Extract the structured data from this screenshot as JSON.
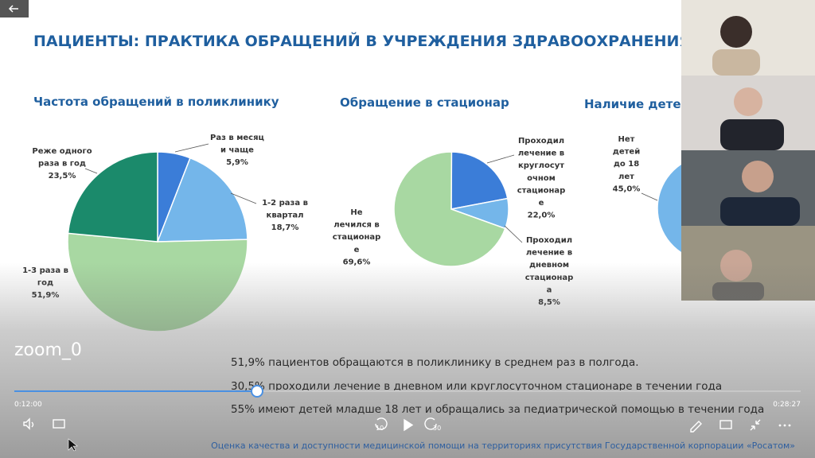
{
  "slide": {
    "title": "ПАЦИЕНТЫ:  ПРАКТИКА ОБРАЩЕНИЙ В УЧРЕЖДЕНИЯ ЗДРАВООХРАНЕНИЯ",
    "footer": "Оценка качества и доступности медицинской помощи на территориях присутствия Государственной корпорации «Росатом»"
  },
  "chart_data": [
    {
      "type": "pie",
      "title": "Частота обращений в поликлинику",
      "categories": [
        "Раз в месяц\nи чаще",
        "1-2 раза в\nквартал",
        "1-3 раза в\nгод",
        "Реже одного\nраза в год"
      ],
      "values": [
        5.9,
        18.7,
        51.9,
        23.5
      ],
      "value_labels": [
        "5,9%",
        "18,7%",
        "51,9%",
        "23,5%"
      ],
      "colors": [
        "#3b7dd8",
        "#74b6ea",
        "#a8d8a2",
        "#1b8a6b"
      ]
    },
    {
      "type": "pie",
      "title": "Обращение в стационар",
      "categories": [
        "Проходил\nлечение в\nкруглосут\nочном\nстационар\nе",
        "Проходил\nлечение в\nдневном\nстационар\nа",
        "Не\nлечился в\nстационар\nе"
      ],
      "values": [
        22.0,
        8.5,
        69.6
      ],
      "value_labels": [
        "22,0%",
        "8,5%",
        "69,6%"
      ],
      "colors": [
        "#3b7dd8",
        "#74b6ea",
        "#a8d8a2"
      ]
    },
    {
      "type": "pie",
      "title": "Наличие дете",
      "categories": [
        "Нет\nдетей\nдо 18\nлет"
      ],
      "values": [
        45.0
      ],
      "value_labels": [
        "45,0%"
      ],
      "colors": [
        "#74b6ea"
      ]
    }
  ],
  "player": {
    "name": "zoom_0",
    "captions": [
      "51,9% пациентов обращаются в поликлинику в среднем раз в полгода.",
      "30,5%  проходили лечение в дневном или круглосуточном стационаре в течении года",
      "55%  имеют детей младше 18 лет и обращались за педиатрической помощью в течении года"
    ],
    "elapsed": "0:12:00",
    "duration": "0:28:27",
    "skip_back": "10",
    "skip_forward": "30"
  }
}
